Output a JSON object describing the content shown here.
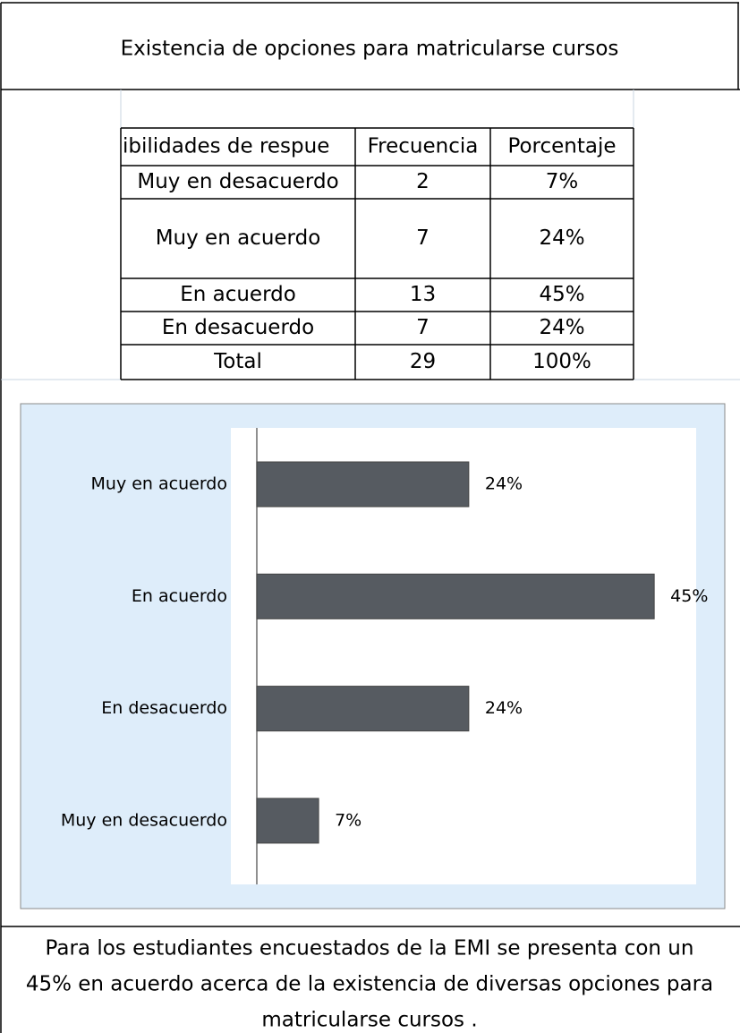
{
  "title": "Existencia de opciones para matricularse cursos",
  "table": {
    "header": [
      "ibilidades de respue",
      "Frecuencia",
      "Porcentaje"
    ],
    "rows": [
      [
        "Muy en desacuerdo",
        "2",
        "7%"
      ],
      [
        "Muy en acuerdo",
        "7",
        "24%"
      ],
      [
        "En acuerdo",
        "13",
        "45%"
      ],
      [
        "En desacuerdo",
        "7",
        "24%"
      ],
      [
        "Total",
        "29",
        "100%"
      ]
    ]
  },
  "chart_data": {
    "type": "barh",
    "categories": [
      "Muy en acuerdo",
      "En acuerdo",
      "En desacuerdo",
      "Muy en desacuerdo"
    ],
    "values": [
      24,
      45,
      24,
      7
    ],
    "value_labels": [
      "24%",
      "45%",
      "24%",
      "7%"
    ],
    "color": "#565b61",
    "xlim": [
      0,
      50
    ]
  },
  "caption": [
    "Para los estudiantes encuestados de la EMI se presenta con un",
    "45% en acuerdo acerca de la existencia de diversas opciones para",
    "matricularse cursos ."
  ]
}
